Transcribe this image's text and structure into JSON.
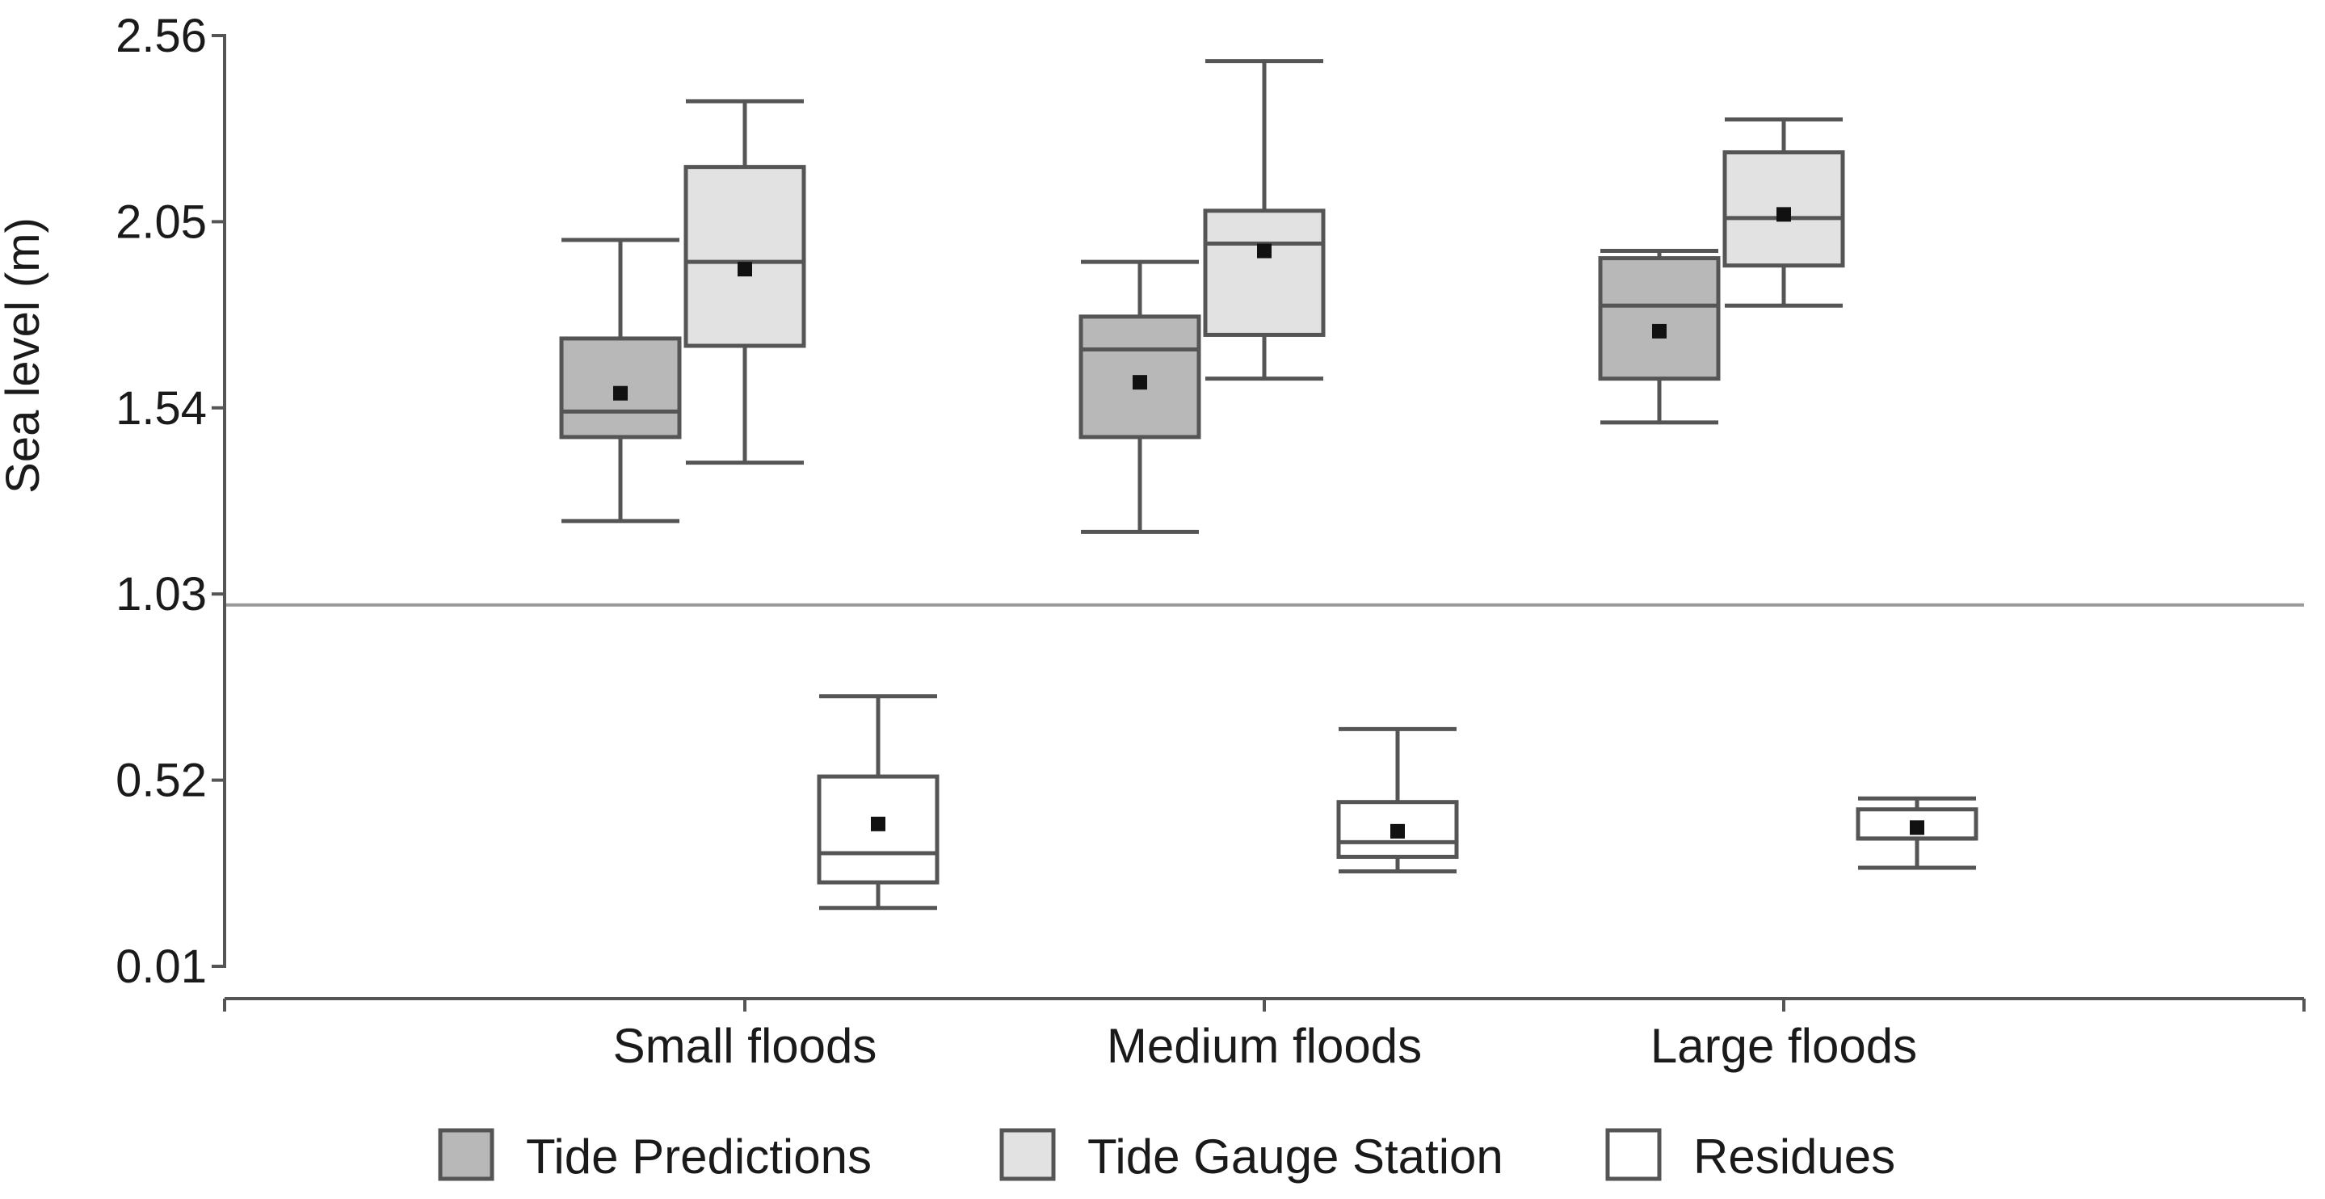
{
  "chart_data": {
    "type": "box",
    "title": "",
    "xlabel": "",
    "ylabel": "Sea level (m)",
    "ylim": [
      0.01,
      2.56
    ],
    "yticks": [
      {
        "value": 2.56,
        "label": "2.56"
      },
      {
        "value": 2.05,
        "label": "2.05"
      },
      {
        "value": 1.54,
        "label": "1.54"
      },
      {
        "value": 1.03,
        "label": "1.03"
      },
      {
        "value": 0.52,
        "label": "0.52"
      },
      {
        "value": 0.01,
        "label": "0.01"
      }
    ],
    "reference_line": {
      "value": 1.0
    },
    "categories": [
      "Small floods",
      "Medium floods",
      "Large floods"
    ],
    "legend_position": "bottom",
    "series": [
      {
        "name": "Tide Predictions",
        "color": "#b8b8b8",
        "boxes": [
          {
            "min": 1.23,
            "q1": 1.46,
            "median": 1.53,
            "q3": 1.73,
            "max": 2.0,
            "mean": 1.58
          },
          {
            "min": 1.2,
            "q1": 1.46,
            "median": 1.7,
            "q3": 1.79,
            "max": 1.94,
            "mean": 1.61
          },
          {
            "min": 1.5,
            "q1": 1.62,
            "median": 1.82,
            "q3": 1.95,
            "max": 1.97,
            "mean": 1.75
          }
        ]
      },
      {
        "name": "Tide Gauge Station",
        "color": "#e2e2e2",
        "boxes": [
          {
            "min": 1.39,
            "q1": 1.71,
            "median": 1.94,
            "q3": 2.2,
            "max": 2.38,
            "mean": 1.92
          },
          {
            "min": 1.62,
            "q1": 1.74,
            "median": 1.99,
            "q3": 2.08,
            "max": 2.49,
            "mean": 1.97
          },
          {
            "min": 1.82,
            "q1": 1.93,
            "median": 2.06,
            "q3": 2.24,
            "max": 2.33,
            "mean": 2.07
          }
        ]
      },
      {
        "name": "Residues",
        "color": "#ffffff",
        "boxes": [
          {
            "min": 0.17,
            "q1": 0.24,
            "median": 0.32,
            "q3": 0.53,
            "max": 0.75,
            "mean": 0.4
          },
          {
            "min": 0.27,
            "q1": 0.31,
            "median": 0.35,
            "q3": 0.46,
            "max": 0.66,
            "mean": 0.38
          },
          {
            "min": 0.28,
            "q1": 0.36,
            "median": 0.36,
            "q3": 0.44,
            "max": 0.47,
            "mean": 0.39
          }
        ]
      }
    ]
  }
}
